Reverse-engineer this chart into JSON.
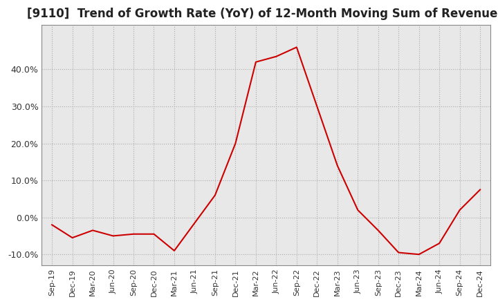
{
  "title": "[9110]  Trend of Growth Rate (YoY) of 12-Month Moving Sum of Revenues",
  "title_fontsize": 12,
  "line_color": "#cc0000",
  "background_color": "#ffffff",
  "plot_bg_color": "#e8e8e8",
  "grid_color": "#aaaaaa",
  "ylabel": "",
  "ylim": [
    -0.13,
    0.52
  ],
  "yticks": [
    -0.1,
    0.0,
    0.1,
    0.2,
    0.3,
    0.4
  ],
  "ytick_labels": [
    "-10.0%",
    "0.0%",
    "10.0%",
    "20.0%",
    "30.0%",
    "40.0%"
  ],
  "x_labels": [
    "Sep-19",
    "Dec-19",
    "Mar-20",
    "Jun-20",
    "Sep-20",
    "Dec-20",
    "Mar-21",
    "Jun-21",
    "Sep-21",
    "Dec-21",
    "Mar-22",
    "Jun-22",
    "Sep-22",
    "Dec-22",
    "Mar-23",
    "Jun-23",
    "Sep-23",
    "Dec-23",
    "Mar-24",
    "Jun-24",
    "Sep-24",
    "Dec-24"
  ],
  "y_values": [
    -0.02,
    -0.055,
    -0.035,
    -0.05,
    -0.045,
    -0.045,
    -0.09,
    -0.015,
    0.06,
    0.2,
    0.42,
    0.435,
    0.46,
    0.3,
    0.14,
    0.02,
    -0.035,
    -0.095,
    -0.1,
    -0.07,
    0.02,
    0.075
  ]
}
